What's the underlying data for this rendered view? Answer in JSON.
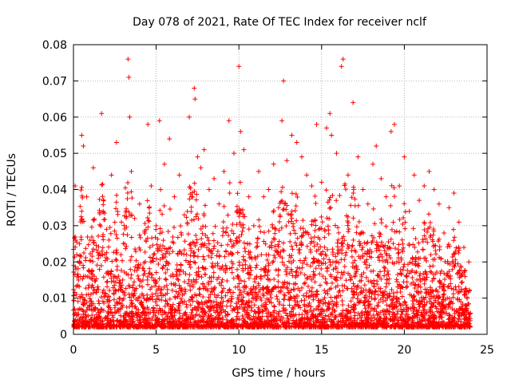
{
  "chart_data": {
    "type": "scatter",
    "title": "Day 078 of 2021, Rate Of TEC Index for receiver nclf",
    "xlabel": "GPS time / hours",
    "ylabel": "ROTI / TECUs",
    "xlim": [
      0,
      25
    ],
    "ylim": [
      0,
      0.08
    ],
    "xticks": [
      0,
      5,
      10,
      15,
      20,
      25
    ],
    "yticks": [
      0,
      0.01,
      0.02,
      0.03,
      0.04,
      0.05,
      0.06,
      0.07,
      0.08
    ],
    "xtick_labels": [
      "0",
      "5",
      "10",
      "15",
      "20",
      "25"
    ],
    "ytick_labels": [
      "0",
      "0.01",
      "0.02",
      "0.03",
      "0.04",
      "0.05",
      "0.06",
      "0.07",
      "0.08"
    ],
    "grid": true,
    "marker": "+",
    "color": "#ff0000",
    "series": [
      {
        "name": "ROTI",
        "x": [
          0.1,
          0.2,
          0.3,
          0.5,
          0.5,
          0.6,
          0.8,
          1.0,
          1.2,
          1.5,
          1.7,
          1.8,
          2.0,
          2.3,
          2.6,
          2.9,
          3.1,
          3.3,
          3.35,
          3.4,
          3.5,
          3.7,
          4.0,
          4.3,
          4.5,
          4.7,
          5.0,
          5.2,
          5.5,
          5.8,
          6.1,
          6.4,
          6.7,
          7.0,
          7.3,
          7.35,
          7.5,
          7.7,
          7.9,
          8.2,
          8.5,
          8.8,
          9.1,
          9.4,
          9.7,
          10.0,
          10.1,
          10.3,
          10.6,
          10.9,
          11.2,
          11.5,
          11.8,
          12.1,
          12.4,
          12.6,
          12.7,
          12.9,
          13.2,
          13.5,
          13.8,
          14.1,
          14.4,
          14.7,
          15.0,
          15.3,
          15.5,
          15.6,
          15.9,
          16.2,
          16.3,
          16.6,
          16.9,
          17.2,
          17.5,
          17.8,
          18.1,
          18.3,
          18.6,
          18.9,
          19.2,
          19.4,
          19.7,
          20.0,
          20.3,
          20.6,
          20.9,
          21.2,
          21.5,
          21.8,
          22.1,
          22.4,
          22.7,
          23.0,
          23.3,
          23.6,
          23.9
        ],
        "y": [
          0.041,
          0.022,
          0.015,
          0.055,
          0.034,
          0.052,
          0.038,
          0.026,
          0.046,
          0.021,
          0.061,
          0.034,
          0.029,
          0.044,
          0.053,
          0.031,
          0.025,
          0.076,
          0.071,
          0.06,
          0.045,
          0.032,
          0.036,
          0.028,
          0.058,
          0.041,
          0.03,
          0.059,
          0.047,
          0.054,
          0.038,
          0.044,
          0.033,
          0.06,
          0.068,
          0.065,
          0.049,
          0.046,
          0.051,
          0.04,
          0.043,
          0.036,
          0.045,
          0.059,
          0.05,
          0.074,
          0.056,
          0.051,
          0.038,
          0.03,
          0.045,
          0.038,
          0.04,
          0.047,
          0.035,
          0.059,
          0.07,
          0.048,
          0.055,
          0.053,
          0.049,
          0.044,
          0.041,
          0.058,
          0.042,
          0.057,
          0.061,
          0.055,
          0.05,
          0.074,
          0.076,
          0.044,
          0.064,
          0.049,
          0.04,
          0.036,
          0.047,
          0.052,
          0.043,
          0.038,
          0.056,
          0.058,
          0.041,
          0.049,
          0.034,
          0.044,
          0.037,
          0.041,
          0.045,
          0.04,
          0.036,
          0.028,
          0.035,
          0.039,
          0.031,
          0.024,
          0.02
        ]
      }
    ]
  }
}
